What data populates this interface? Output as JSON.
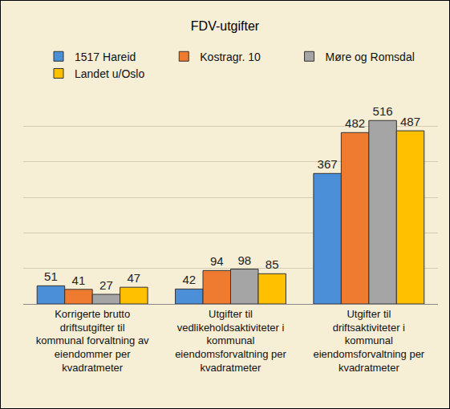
{
  "chart_data": {
    "type": "bar",
    "title": "FDV-utgifter",
    "categories": [
      "Korrigerte brutto driftsutgifter til kommunal forvaltning av eiendommer per kvadratmeter",
      "Utgifter til vedlikeholdsaktiviteter i kommunal eiendomsforvaltning per kvadratmeter",
      "Utgifter til driftsaktiviteter i kommunal eiendomsforvaltning per kvadratmeter"
    ],
    "series": [
      {
        "name": "1517 Hareid",
        "color": "#4a8fd8",
        "values": [
          51,
          42,
          367
        ]
      },
      {
        "name": "Kostragr. 10",
        "color": "#ef7b30",
        "values": [
          41,
          94,
          482
        ]
      },
      {
        "name": "Møre og Romsdal",
        "color": "#a5a5a5",
        "values": [
          27,
          98,
          516
        ]
      },
      {
        "name": "Landet u/Oslo",
        "color": "#ffc000",
        "values": [
          47,
          85,
          487
        ]
      }
    ],
    "ylim": [
      0,
      600
    ],
    "yticks": [
      0,
      100,
      200,
      300,
      400,
      500,
      600
    ],
    "grid": true,
    "legend": "top",
    "data_labels": true,
    "tick_labels": "x"
  }
}
